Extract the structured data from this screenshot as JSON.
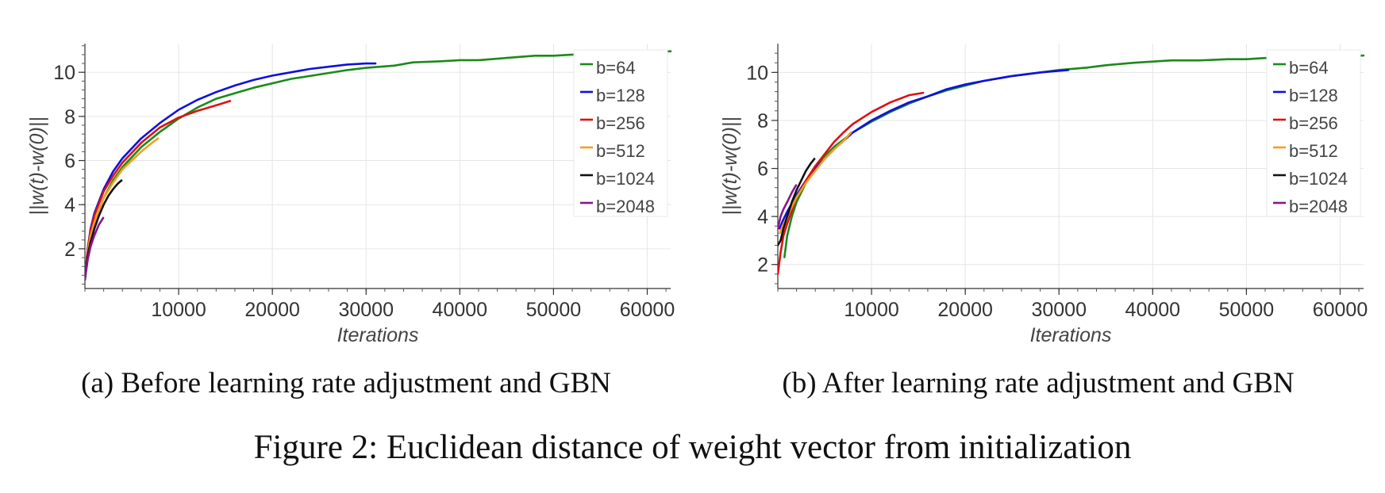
{
  "figure_caption": "Figure 2: Euclidean distance of weight vector from initialization",
  "chart_data": [
    {
      "type": "line",
      "caption": "(a) Before learning rate adjustment and GBN",
      "xlabel": "Iterations",
      "ylabel": "||w(t)-w(0)||",
      "xlim": [
        0,
        62500
      ],
      "ylim": [
        0.2,
        11.3
      ],
      "xticks": [
        10000,
        20000,
        30000,
        40000,
        50000,
        60000
      ],
      "yticks": [
        2,
        4,
        6,
        8,
        10
      ],
      "grid": true,
      "legend": "top-right",
      "series": [
        {
          "name": "b=64",
          "color": "#1a8a1a",
          "x": [
            0,
            500,
            1000,
            2000,
            3000,
            4000,
            6000,
            8000,
            10000,
            12000,
            14000,
            16000,
            18000,
            20000,
            22000,
            25000,
            28000,
            30000,
            33000,
            35000,
            38000,
            40000,
            42000,
            45000,
            48000,
            50000,
            52000,
            55000,
            58000,
            60000,
            62500
          ],
          "y": [
            0.6,
            2.4,
            3.2,
            4.3,
            5.1,
            5.7,
            6.6,
            7.3,
            7.9,
            8.4,
            8.8,
            9.05,
            9.3,
            9.5,
            9.7,
            9.9,
            10.1,
            10.2,
            10.3,
            10.45,
            10.5,
            10.55,
            10.55,
            10.65,
            10.75,
            10.75,
            10.8,
            10.85,
            10.9,
            10.9,
            10.95
          ]
        },
        {
          "name": "b=128",
          "color": "#1010dd",
          "x": [
            0,
            300,
            600,
            1000,
            2000,
            3000,
            4000,
            6000,
            8000,
            10000,
            12000,
            14000,
            16000,
            18000,
            20000,
            22000,
            24000,
            26000,
            28000,
            30000,
            31000
          ],
          "y": [
            0.6,
            2.0,
            2.9,
            3.6,
            4.7,
            5.5,
            6.1,
            7.0,
            7.7,
            8.3,
            8.75,
            9.1,
            9.4,
            9.65,
            9.85,
            10.0,
            10.15,
            10.25,
            10.35,
            10.4,
            10.4
          ]
        },
        {
          "name": "b=256",
          "color": "#dd1111",
          "x": [
            0,
            300,
            600,
            1000,
            2000,
            3000,
            4000,
            6000,
            8000,
            10000,
            12000,
            14000,
            15500
          ],
          "y": [
            0.6,
            2.0,
            2.8,
            3.5,
            4.6,
            5.3,
            5.9,
            6.8,
            7.5,
            7.95,
            8.25,
            8.5,
            8.7
          ]
        },
        {
          "name": "b=512",
          "color": "#f0a020",
          "x": [
            0,
            300,
            600,
            1000,
            2000,
            3000,
            4000,
            5000,
            6000,
            7000,
            7800
          ],
          "y": [
            0.6,
            1.8,
            2.6,
            3.2,
            4.3,
            5.0,
            5.6,
            6.0,
            6.4,
            6.75,
            7.0
          ]
        },
        {
          "name": "b=1024",
          "color": "#111111",
          "x": [
            0,
            300,
            600,
            1000,
            1500,
            2000,
            2500,
            3000,
            3500,
            3900
          ],
          "y": [
            0.6,
            1.7,
            2.3,
            2.9,
            3.5,
            4.0,
            4.4,
            4.7,
            4.95,
            5.1
          ]
        },
        {
          "name": "b=2048",
          "color": "#8a158a",
          "x": [
            0,
            300,
            600,
            1000,
            1500,
            1950
          ],
          "y": [
            0.6,
            1.5,
            2.1,
            2.6,
            3.1,
            3.4
          ]
        }
      ]
    },
    {
      "type": "line",
      "caption": "(b) After learning rate adjustment and GBN",
      "xlabel": "Iterations",
      "ylabel": "||w(t)-w(0)||",
      "xlim": [
        0,
        62500
      ],
      "ylim": [
        1.0,
        11.2
      ],
      "xticks": [
        10000,
        20000,
        30000,
        40000,
        50000,
        60000
      ],
      "yticks": [
        2,
        4,
        6,
        8,
        10
      ],
      "grid": true,
      "legend": "top-right",
      "series": [
        {
          "name": "b=64",
          "color": "#1a8a1a",
          "x": [
            700,
            1000,
            1500,
            2000,
            3000,
            4000,
            5000,
            6000,
            8000,
            10000,
            12000,
            14000,
            16000,
            18000,
            20000,
            22000,
            25000,
            28000,
            30000,
            33000,
            35000,
            38000,
            40000,
            42000,
            45000,
            48000,
            50000,
            52000,
            55000,
            58000,
            60000,
            62500
          ],
          "y": [
            2.3,
            3.2,
            4.0,
            4.6,
            5.4,
            6.0,
            6.5,
            6.9,
            7.5,
            7.95,
            8.35,
            8.7,
            9.0,
            9.25,
            9.45,
            9.65,
            9.85,
            10.0,
            10.1,
            10.2,
            10.3,
            10.4,
            10.45,
            10.5,
            10.5,
            10.55,
            10.55,
            10.6,
            10.6,
            10.65,
            10.65,
            10.7
          ]
        },
        {
          "name": "b=128",
          "color": "#1010dd",
          "x": [
            200,
            500,
            1000,
            2000,
            3000,
            4000,
            6000,
            8000,
            10000,
            12000,
            14000,
            16000,
            18000,
            20000,
            22000,
            25000,
            28000,
            31000
          ],
          "y": [
            3.5,
            3.8,
            4.2,
            4.9,
            5.5,
            6.0,
            6.8,
            7.5,
            8.0,
            8.4,
            8.75,
            9.0,
            9.3,
            9.5,
            9.65,
            9.85,
            10.0,
            10.1
          ]
        },
        {
          "name": "b=256",
          "color": "#dd1111",
          "x": [
            0,
            300,
            600,
            1000,
            2000,
            3000,
            4000,
            5000,
            6000,
            7000,
            8000,
            10000,
            12000,
            14000,
            15500
          ],
          "y": [
            1.6,
            2.5,
            3.2,
            3.7,
            4.8,
            5.5,
            6.1,
            6.6,
            7.1,
            7.5,
            7.85,
            8.35,
            8.75,
            9.05,
            9.15
          ]
        },
        {
          "name": "b=512",
          "color": "#f0a020",
          "x": [
            200,
            500,
            1000,
            2000,
            3000,
            4000,
            5000,
            6000,
            7000,
            7800
          ],
          "y": [
            3.3,
            3.6,
            4.0,
            4.8,
            5.4,
            5.9,
            6.4,
            6.8,
            7.15,
            7.5
          ]
        },
        {
          "name": "b=1024",
          "color": "#111111",
          "x": [
            0,
            300,
            600,
            1000,
            1500,
            2000,
            2500,
            3000,
            3500,
            3900
          ],
          "y": [
            2.8,
            3.0,
            3.5,
            4.0,
            4.6,
            5.1,
            5.5,
            5.9,
            6.2,
            6.4
          ]
        },
        {
          "name": "b=2048",
          "color": "#8a158a",
          "x": [
            0,
            300,
            600,
            1000,
            1500,
            1950
          ],
          "y": [
            3.5,
            4.0,
            4.3,
            4.6,
            5.0,
            5.3
          ]
        }
      ]
    }
  ]
}
